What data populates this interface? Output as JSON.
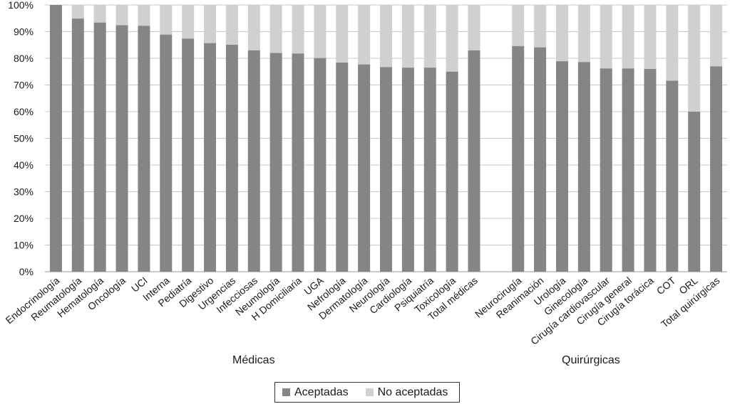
{
  "chart_data": {
    "type": "bar",
    "stacked": true,
    "percent": true,
    "title": "",
    "xlabel": "",
    "ylabel": "",
    "ylim": [
      0,
      100
    ],
    "yticks": [
      "0%",
      "10%",
      "20%",
      "30%",
      "40%",
      "50%",
      "60%",
      "70%",
      "80%",
      "90%",
      "100%"
    ],
    "grid": true,
    "legend_position": "bottom-center",
    "colors": {
      "Aceptadas": "#858585",
      "No aceptadas": "#d0d0d0"
    },
    "groups": [
      {
        "name": "Médicas",
        "categories": [
          "Endocrinología",
          "Reumatología",
          "Hematología",
          "Oncología",
          "UCI",
          "Interna",
          "Pediatría",
          "Digestivo",
          "Urgencias",
          "Infecciosas",
          "Neumología",
          "H Domiciliaria",
          "UGA",
          "Nefrología",
          "Dermatología",
          "Neurología",
          "Cardiología",
          "Psiquiatría",
          "Toxicología",
          "Total médicas"
        ],
        "aceptadas": [
          100,
          94.9,
          93.4,
          92.4,
          92.2,
          88.9,
          87.4,
          85.7,
          85.1,
          83.0,
          82.0,
          81.8,
          80.1,
          78.4,
          77.7,
          76.7,
          76.5,
          76.5,
          75.0,
          83.0
        ]
      },
      {
        "name": "Quirúrgicas",
        "categories": [
          "Neurocirugía",
          "Reanimación",
          "Urología",
          "Ginecología",
          "Cirugía cardiovascular",
          "Cirugía general",
          "Cirugía torácica",
          "COT",
          "ORL",
          "Total quirúrgicas"
        ],
        "aceptadas": [
          84.6,
          84.1,
          78.9,
          78.6,
          76.2,
          76.2,
          76.0,
          71.6,
          60.0,
          77.0
        ]
      }
    ],
    "series": [
      {
        "name": "Aceptadas"
      },
      {
        "name": "No aceptadas",
        "note": "complement to 100%"
      }
    ]
  },
  "legend": {
    "aceptadas": "Aceptadas",
    "no_aceptadas": "No aceptadas"
  },
  "group_labels": {
    "medicas": "Médicas",
    "quirurgicas": "Quirúrgicas"
  }
}
